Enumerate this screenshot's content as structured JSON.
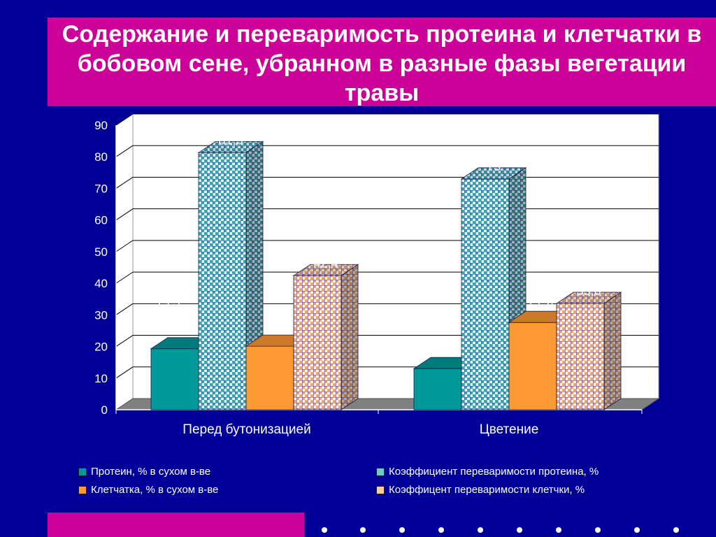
{
  "chart_data": {
    "type": "bar",
    "title": "Содержание и переваримость протеина и клетчатки в  бобовом сене, убранном в разные фазы вегетации травы",
    "categories": [
      "Перед бутонизацией",
      "Цветение"
    ],
    "series": [
      {
        "name": "Протеин, % в сухом в-ве",
        "values": [
          19.3,
          13
        ],
        "labels": [
          "19,3",
          "13"
        ],
        "color": "#009999"
      },
      {
        "name": "Коэффициент переваримости протеина, %",
        "values": [
          81.3,
          73
        ],
        "labels": [
          "81,3",
          "73"
        ],
        "color": "#66cccc"
      },
      {
        "name": "Клетчатка, % в сухом в-ве",
        "values": [
          20.1,
          27.6
        ],
        "labels": [
          "20,1",
          "27,6"
        ],
        "color": "#ff9933"
      },
      {
        "name": "Коэффицент переваримости клетчки, %",
        "values": [
          42.4,
          33.6
        ],
        "labels": [
          "42,4",
          "33,6"
        ],
        "color": "#ffcc99"
      }
    ],
    "y_ticks": [
      "0",
      "10",
      "20",
      "30",
      "40",
      "50",
      "60",
      "70",
      "80",
      "90"
    ],
    "ylim": [
      0,
      90
    ],
    "grid": true,
    "legend_position": "bottom",
    "style": "3d-clustered-bar"
  },
  "colors": {
    "background": "#000099",
    "accent": "#cc0099",
    "plot_wall": "#ffffff",
    "floor": "#808080"
  }
}
